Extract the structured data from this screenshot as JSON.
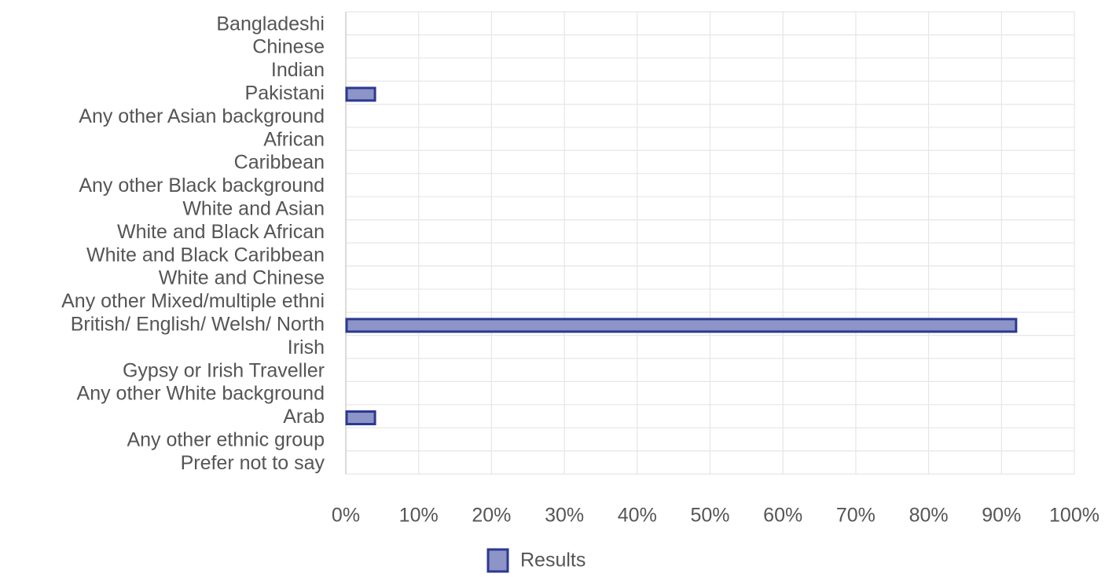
{
  "chart_data": {
    "type": "bar",
    "orientation": "horizontal",
    "categories": [
      "Bangladeshi",
      "Chinese",
      "Indian",
      "Pakistani",
      "Any other Asian background",
      "African",
      "Caribbean",
      "Any other Black background",
      "White and Asian",
      "White and Black African",
      "White and Black Caribbean",
      "White and Chinese",
      "Any other Mixed/multiple ethni",
      "British/ English/ Welsh/ North",
      "Irish",
      "Gypsy or Irish Traveller",
      "Any other White background",
      "Arab",
      "Any other ethnic group",
      "Prefer not to say"
    ],
    "series": [
      {
        "name": "Results",
        "values": [
          0,
          0,
          0,
          4,
          0,
          0,
          0,
          0,
          0,
          0,
          0,
          0,
          0,
          92,
          0,
          0,
          0,
          4,
          0,
          0
        ]
      }
    ],
    "xlim": [
      0,
      100
    ],
    "x_ticks": [
      "0%",
      "10%",
      "20%",
      "30%",
      "40%",
      "50%",
      "60%",
      "70%",
      "80%",
      "90%",
      "100%"
    ],
    "title": "",
    "xlabel": "",
    "ylabel": "",
    "grid": true,
    "legend_position": "bottom",
    "colors": {
      "bar_fill": "#8c94c8",
      "bar_stroke": "#2b3990",
      "grid": "#e6e6e6",
      "axis": "#d0d0d0",
      "text": "#555555"
    }
  }
}
